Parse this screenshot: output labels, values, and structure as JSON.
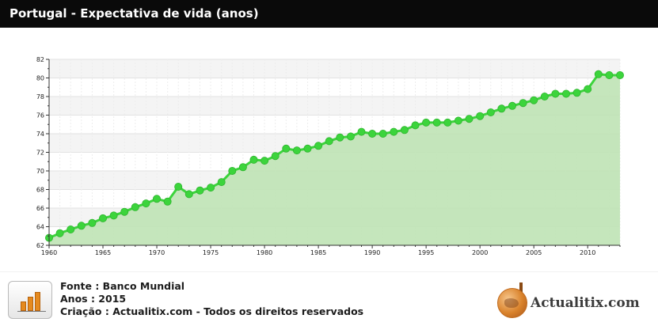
{
  "header": {
    "title": "Portugal - Expectativa de vida (anos)"
  },
  "chart_data": {
    "type": "area",
    "title": "Portugal - Expectativa de vida (anos)",
    "xlabel": "",
    "ylabel": "",
    "xlim": [
      1960,
      2013
    ],
    "ylim": [
      62,
      82
    ],
    "x_ticks": [
      1960,
      1965,
      1970,
      1975,
      1980,
      1985,
      1990,
      1995,
      2000,
      2005,
      2010
    ],
    "y_ticks": [
      62,
      64,
      66,
      68,
      70,
      72,
      74,
      76,
      78,
      80,
      82
    ],
    "grid": true,
    "line_color": "#3cd43c",
    "fill_color": "#bfe3b5",
    "x": [
      1960,
      1961,
      1962,
      1963,
      1964,
      1965,
      1966,
      1967,
      1968,
      1969,
      1970,
      1971,
      1972,
      1973,
      1974,
      1975,
      1976,
      1977,
      1978,
      1979,
      1980,
      1981,
      1982,
      1983,
      1984,
      1985,
      1986,
      1987,
      1988,
      1989,
      1990,
      1991,
      1992,
      1993,
      1994,
      1995,
      1996,
      1997,
      1998,
      1999,
      2000,
      2001,
      2002,
      2003,
      2004,
      2005,
      2006,
      2007,
      2008,
      2009,
      2010,
      2011,
      2012,
      2013
    ],
    "values": [
      62.8,
      63.3,
      63.7,
      64.1,
      64.4,
      64.9,
      65.2,
      65.6,
      66.1,
      66.5,
      67.0,
      66.7,
      68.3,
      67.5,
      67.9,
      68.2,
      68.8,
      70.0,
      70.4,
      71.2,
      71.1,
      71.6,
      72.4,
      72.2,
      72.4,
      72.7,
      73.2,
      73.6,
      73.7,
      74.2,
      74.0,
      74.0,
      74.2,
      74.4,
      74.9,
      75.2,
      75.2,
      75.2,
      75.4,
      75.6,
      75.9,
      76.3,
      76.7,
      77.0,
      77.3,
      77.6,
      78.0,
      78.3,
      78.3,
      78.4,
      78.8,
      80.4,
      80.3,
      80.3
    ]
  },
  "footer": {
    "source": "Fonte : Banco Mundial",
    "years": "Anos : 2015",
    "creation": "Criação : Actualitix.com - Todos os direitos reservados",
    "brand": "Actualitix.com",
    "icon": "bar-chart-icon"
  }
}
